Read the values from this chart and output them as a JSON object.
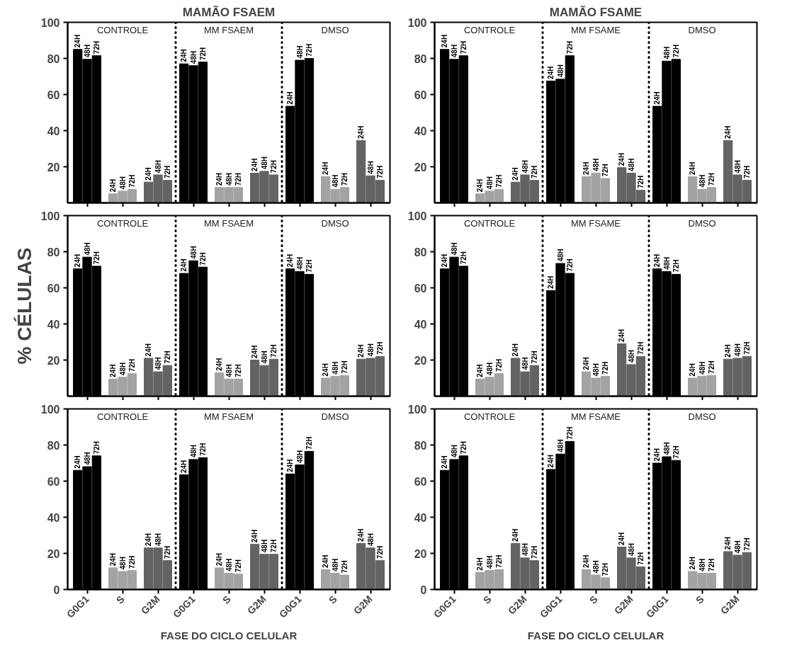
{
  "chart_data": [
    {
      "type": "bar",
      "title": "MAMÃO FSAEM",
      "categories": [
        null,
        null,
        null,
        null,
        null,
        null,
        null,
        null,
        null
      ],
      "tick_labels": "y",
      "ylim": [
        0,
        100
      ],
      "yticks": [
        20,
        40,
        60,
        80,
        100
      ],
      "annotations": [
        "CONTROLE",
        "MM FSAEM",
        "DMSO"
      ],
      "series": [
        {
          "name": "24H",
          "colors": [
            "#000000",
            "#a3a3a6",
            "#636363",
            "#000000",
            "#a3a3a6",
            "#636363",
            "#000000",
            "#a3a3a6",
            "#636363"
          ],
          "values": [
            85,
            5,
            11.5,
            77,
            8.5,
            16.5,
            53.5,
            14.5,
            34.5
          ]
        },
        {
          "name": "48H",
          "colors": [
            "#000000",
            "#a3a3a6",
            "#636363",
            "#000000",
            "#a3a3a6",
            "#636363",
            "#000000",
            "#a3a3a6",
            "#636363"
          ],
          "values": [
            79.5,
            6.5,
            15.5,
            76,
            8.5,
            17.5,
            79,
            7.5,
            15
          ]
        },
        {
          "name": "72H",
          "colors": [
            "#000000",
            "#a3a3a6",
            "#636363",
            "#000000",
            "#a3a3a6",
            "#636363",
            "#000000",
            "#a3a3a6",
            "#636363"
          ],
          "values": [
            81.5,
            7.5,
            12.5,
            78,
            8.5,
            15.5,
            80,
            8.5,
            12.5
          ]
        }
      ]
    },
    {
      "type": "bar",
      "title": "MAMÃO FSAME",
      "categories": [
        null,
        null,
        null,
        null,
        null,
        null,
        null,
        null,
        null
      ],
      "tick_labels": "y",
      "ylim": [
        0,
        100
      ],
      "yticks": [
        20,
        40,
        60,
        80,
        100
      ],
      "annotations": [
        "CONTROLE",
        "MM FSAME",
        "DMSO"
      ],
      "series": [
        {
          "name": "24H",
          "colors": [
            "#000000",
            "#a3a3a6",
            "#636363",
            "#000000",
            "#a3a3a6",
            "#636363",
            "#000000",
            "#a3a3a6",
            "#636363"
          ],
          "values": [
            85,
            5,
            11.5,
            67.5,
            14.5,
            19.5,
            53.5,
            14.5,
            34.5
          ]
        },
        {
          "name": "48H",
          "colors": [
            "#000000",
            "#a3a3a6",
            "#636363",
            "#000000",
            "#a3a3a6",
            "#636363",
            "#000000",
            "#a3a3a6",
            "#636363"
          ],
          "values": [
            79.5,
            6.5,
            15.5,
            68.5,
            16.5,
            16.5,
            78.5,
            7.5,
            15.5
          ]
        },
        {
          "name": "72H",
          "colors": [
            "#000000",
            "#a3a3a6",
            "#636363",
            "#000000",
            "#a3a3a6",
            "#636363",
            "#000000",
            "#a3a3a6",
            "#636363"
          ],
          "values": [
            81.5,
            7.5,
            12.5,
            81.5,
            13.5,
            7,
            79.5,
            8.5,
            12.5
          ]
        }
      ]
    },
    {
      "type": "bar",
      "ylabel": "% CÉLULAS",
      "categories": [
        null,
        null,
        null,
        null,
        null,
        null,
        null,
        null,
        null
      ],
      "tick_labels": "y",
      "ylim": [
        0,
        100
      ],
      "yticks": [
        20,
        40,
        60,
        80,
        100
      ],
      "annotations": [
        "CONTROLE",
        "MM FSAEM",
        "DMSO"
      ],
      "series": [
        {
          "name": "24H",
          "colors": [
            "#000000",
            "#a3a3a6",
            "#636363",
            "#000000",
            "#a3a3a6",
            "#636363",
            "#000000",
            "#a3a3a6",
            "#636363"
          ],
          "values": [
            70.5,
            9.5,
            21,
            68,
            13,
            20,
            70.5,
            10,
            20.5
          ]
        },
        {
          "name": "48H",
          "colors": [
            "#000000",
            "#a3a3a6",
            "#636363",
            "#000000",
            "#a3a3a6",
            "#636363",
            "#000000",
            "#a3a3a6",
            "#636363"
          ],
          "values": [
            77,
            10.5,
            13.5,
            75,
            9.5,
            17,
            69,
            11,
            21
          ]
        },
        {
          "name": "72H",
          "colors": [
            "#000000",
            "#a3a3a6",
            "#636363",
            "#000000",
            "#a3a3a6",
            "#636363",
            "#000000",
            "#a3a3a6",
            "#636363"
          ],
          "values": [
            72,
            12.5,
            17,
            71.5,
            9.5,
            20.5,
            67.5,
            11.5,
            22
          ]
        }
      ]
    },
    {
      "type": "bar",
      "categories": [
        null,
        null,
        null,
        null,
        null,
        null,
        null,
        null,
        null
      ],
      "tick_labels": "y",
      "ylim": [
        0,
        100
      ],
      "yticks": [
        20,
        40,
        60,
        80,
        100
      ],
      "annotations": [
        "CONTROLE",
        "MM FSAME",
        "DMSO"
      ],
      "series": [
        {
          "name": "24H",
          "colors": [
            "#000000",
            "#a3a3a6",
            "#636363",
            "#000000",
            "#a3a3a6",
            "#636363",
            "#000000",
            "#a3a3a6",
            "#636363"
          ],
          "values": [
            70.5,
            9.5,
            21,
            58.5,
            13.5,
            29,
            70.5,
            10,
            20.5
          ]
        },
        {
          "name": "48H",
          "colors": [
            "#000000",
            "#a3a3a6",
            "#636363",
            "#000000",
            "#a3a3a6",
            "#636363",
            "#000000",
            "#a3a3a6",
            "#636363"
          ],
          "values": [
            77,
            10.5,
            13.5,
            73.5,
            10,
            17.5,
            69,
            11,
            21
          ]
        },
        {
          "name": "72H",
          "colors": [
            "#000000",
            "#a3a3a6",
            "#636363",
            "#000000",
            "#a3a3a6",
            "#636363",
            "#000000",
            "#a3a3a6",
            "#636363"
          ],
          "values": [
            72,
            12.5,
            17,
            68,
            11,
            22,
            67.5,
            11.5,
            22
          ]
        }
      ]
    },
    {
      "type": "bar",
      "xlabel": "FASE DO CICLO CELULAR",
      "categories": [
        "G0G1",
        "S",
        "G2M",
        "G0G1",
        "S",
        "G2M",
        "G0G1",
        "S",
        "G2M"
      ],
      "ylim": [
        0,
        100
      ],
      "yticks": [
        0,
        20,
        40,
        60,
        80,
        100
      ],
      "annotations": [
        "CONTROLE",
        "MM FSAEM",
        "DMSO"
      ],
      "series": [
        {
          "name": "24H",
          "colors": [
            "#000000",
            "#a3a3a6",
            "#636363",
            "#000000",
            "#a3a3a6",
            "#636363",
            "#000000",
            "#a3a3a6",
            "#636363"
          ],
          "values": [
            66,
            12,
            23,
            63.5,
            12,
            25,
            64,
            11,
            25.5
          ]
        },
        {
          "name": "48H",
          "colors": [
            "#000000",
            "#a3a3a6",
            "#636363",
            "#000000",
            "#a3a3a6",
            "#636363",
            "#000000",
            "#a3a3a6",
            "#636363"
          ],
          "values": [
            68,
            10,
            23,
            72,
            9,
            19.5,
            69,
            9,
            23
          ]
        },
        {
          "name": "72H",
          "colors": [
            "#000000",
            "#a3a3a6",
            "#636363",
            "#000000",
            "#a3a3a6",
            "#636363",
            "#000000",
            "#a3a3a6",
            "#636363"
          ],
          "values": [
            74,
            10.5,
            16,
            73,
            8.5,
            19.5,
            76.5,
            8,
            16
          ]
        }
      ]
    },
    {
      "type": "bar",
      "xlabel": "FASE DO CICLO CELULAR",
      "categories": [
        "G0G1",
        "S",
        "G2M",
        "G0G1",
        "S",
        "G2M",
        "G0G1",
        "S",
        "G2M"
      ],
      "ylim": [
        0,
        100
      ],
      "yticks": [
        0,
        20,
        40,
        60,
        80,
        100
      ],
      "annotations": [
        "CONTROLE",
        "MM FSAME",
        "DMSO"
      ],
      "series": [
        {
          "name": "24H",
          "colors": [
            "#000000",
            "#a3a3a6",
            "#636363",
            "#000000",
            "#a3a3a6",
            "#636363",
            "#000000",
            "#a3a3a6",
            "#636363"
          ],
          "values": [
            66,
            9.5,
            25.5,
            66.5,
            11,
            23.5,
            70,
            10,
            21
          ]
        },
        {
          "name": "48H",
          "colors": [
            "#000000",
            "#a3a3a6",
            "#636363",
            "#000000",
            "#a3a3a6",
            "#636363",
            "#000000",
            "#a3a3a6",
            "#636363"
          ],
          "values": [
            72,
            10.5,
            17.5,
            75,
            8,
            17.5,
            73.5,
            9,
            19
          ]
        },
        {
          "name": "72H",
          "colors": [
            "#000000",
            "#a3a3a6",
            "#636363",
            "#000000",
            "#a3a3a6",
            "#636363",
            "#000000",
            "#a3a3a6",
            "#636363"
          ],
          "values": [
            74,
            11,
            16,
            82,
            6.5,
            12.5,
            71.5,
            9,
            20.5
          ]
        }
      ]
    }
  ]
}
